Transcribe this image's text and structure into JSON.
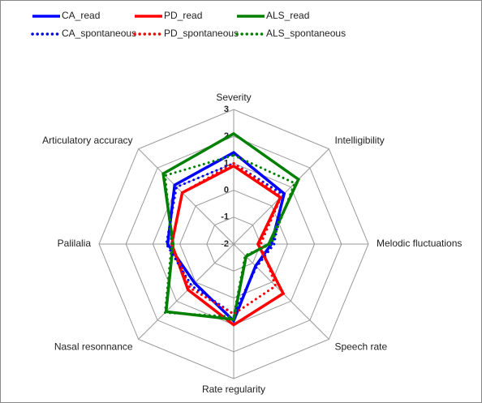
{
  "chart_data": {
    "type": "radar",
    "categories": [
      "Severity",
      "Intelligibility",
      "Melodic fluctuations",
      "Speech rate",
      "Rate regularity",
      "Nasal resonnance",
      "Palilalia",
      "Articulatory accuracy"
    ],
    "rlim": [
      -2,
      3
    ],
    "rticks": [
      -2,
      -1,
      0,
      1,
      2,
      3
    ],
    "grid": true,
    "series": [
      {
        "name": "CA_read",
        "color": "#0000ff",
        "style": "solid",
        "values": [
          1.4,
          0.65,
          -0.6,
          -0.85,
          0.85,
          0.05,
          0.45,
          1.1
        ]
      },
      {
        "name": "PD_read",
        "color": "#ff0000",
        "style": "solid",
        "values": [
          0.9,
          0.45,
          -1.1,
          0.6,
          1.0,
          0.4,
          0.3,
          0.7
        ]
      },
      {
        "name": "ALS_read",
        "color": "#008000",
        "style": "solid",
        "values": [
          2.1,
          1.4,
          -0.7,
          -1.35,
          0.8,
          1.55,
          0.25,
          1.7
        ]
      },
      {
        "name": "CA_spontaneous",
        "color": "#0000ff",
        "style": "dotted",
        "values": [
          1.0,
          0.6,
          -0.5,
          -0.8,
          0.6,
          0.2,
          0.5,
          1.0
        ]
      },
      {
        "name": "PD_spontaneous",
        "color": "#ff0000",
        "style": "dotted",
        "values": [
          1.0,
          0.5,
          -1.0,
          0.2,
          0.6,
          0.3,
          0.3,
          0.7
        ]
      },
      {
        "name": "ALS_spontaneous",
        "color": "#008000",
        "style": "dotted",
        "values": [
          1.3,
          1.2,
          -0.6,
          -1.4,
          0.7,
          1.6,
          0.3,
          1.6
        ]
      }
    ]
  }
}
